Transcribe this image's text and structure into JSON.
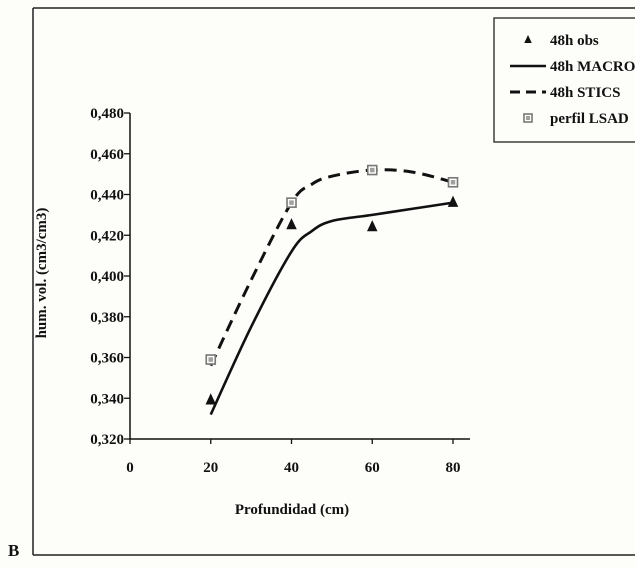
{
  "panel_label": "B",
  "chart_data": {
    "type": "line",
    "title": "",
    "xlabel": "Profundidad (cm)",
    "ylabel": "hum. vol. (cm3/cm3)",
    "xlim": [
      0,
      80
    ],
    "ylim": [
      0.32,
      0.48
    ],
    "x_ticks": [
      0,
      20,
      40,
      60,
      80
    ],
    "x_tick_labels": [
      "0",
      "20",
      "40",
      "60",
      "80"
    ],
    "y_ticks": [
      0.32,
      0.34,
      0.36,
      0.38,
      0.4,
      0.42,
      0.44,
      0.46,
      0.48
    ],
    "y_tick_labels": [
      "0,320",
      "0,340",
      "0,360",
      "0,380",
      "0,400",
      "0,420",
      "0,440",
      "0,460",
      "0,480"
    ],
    "grid": false,
    "legend_position": "top-right",
    "series": [
      {
        "name": "48h obs",
        "style": "triangle-markers",
        "color": "#111111",
        "x": [
          20,
          40,
          60,
          80
        ],
        "y": [
          0.339,
          0.425,
          0.424,
          0.436
        ]
      },
      {
        "name": "48h MACRO",
        "style": "solid-line",
        "color": "#111111",
        "x": [
          20,
          30,
          40,
          45,
          50,
          60,
          70,
          80
        ],
        "y": [
          0.332,
          0.375,
          0.412,
          0.422,
          0.427,
          0.43,
          0.433,
          0.436
        ]
      },
      {
        "name": "48h STICS",
        "style": "dashed-line",
        "color": "#111111",
        "x": [
          20,
          30,
          40,
          45,
          50,
          60,
          70,
          80
        ],
        "y": [
          0.356,
          0.398,
          0.436,
          0.445,
          0.449,
          0.452,
          0.451,
          0.446
        ]
      },
      {
        "name": "perfil LSAD",
        "style": "square-markers",
        "color": "#777777",
        "x": [
          20,
          40,
          60,
          80
        ],
        "y": [
          0.359,
          0.436,
          0.452,
          0.446
        ]
      }
    ]
  }
}
